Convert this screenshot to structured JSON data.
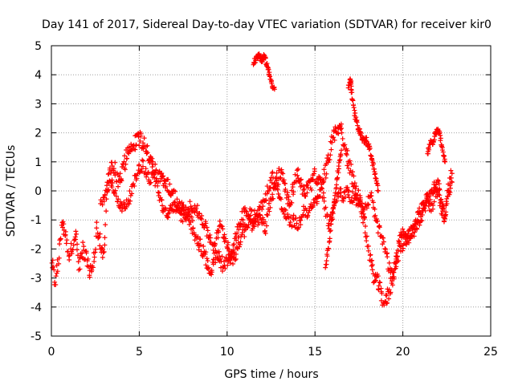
{
  "chart_data": {
    "type": "scatter",
    "title": "Day 141 of 2017, Sidereal Day-to-day VTEC variation (SDTVAR) for receiver kir0",
    "xlabel": "GPS time / hours",
    "ylabel": "SDTVAR / TECUs",
    "xlim": [
      0,
      25
    ],
    "ylim": [
      -5,
      5
    ],
    "xticks": [
      0,
      5,
      10,
      15,
      20,
      25
    ],
    "yticks": [
      -5,
      -4,
      -3,
      -2,
      -1,
      0,
      1,
      2,
      3,
      4,
      5
    ],
    "grid": true,
    "marker": "+",
    "series": [
      {
        "name": "kir0",
        "color": "#ff0000",
        "track_a": {
          "x": [
            0.0,
            0.2,
            0.4,
            0.6,
            0.8,
            1.0,
            1.2,
            1.4,
            1.6,
            1.8,
            2.0,
            2.2,
            2.4,
            2.6,
            2.8,
            3.0,
            3.2,
            3.4,
            3.6,
            3.8,
            4.0,
            4.2,
            4.4,
            4.6,
            4.8,
            5.0,
            5.2,
            5.4,
            5.6,
            5.8,
            6.0,
            6.2,
            6.4,
            6.6,
            6.8,
            7.0,
            7.2,
            7.4,
            7.6,
            7.8,
            8.0,
            8.2,
            8.4,
            8.6,
            8.8,
            9.0,
            9.2,
            9.4,
            9.6,
            9.8,
            10.0,
            10.2,
            10.4,
            10.6,
            10.8,
            11.0,
            11.2,
            11.4,
            11.6,
            11.8,
            12.0,
            12.2,
            12.4,
            12.6,
            12.8,
            13.0,
            13.2,
            13.4,
            13.6,
            13.8,
            14.0,
            14.2,
            14.4,
            14.6,
            14.8,
            15.0,
            15.2,
            15.4,
            15.6,
            15.8,
            16.0,
            16.2,
            16.4,
            16.6,
            16.8,
            17.0,
            17.2,
            17.4,
            17.6,
            17.8,
            18.0,
            18.2,
            18.4,
            18.6,
            18.8,
            19.0,
            19.2,
            19.4,
            19.6,
            19.8,
            20.0,
            20.2,
            20.4,
            20.6,
            20.8,
            21.0,
            21.2,
            21.4,
            21.6,
            21.8,
            22.0,
            22.2,
            22.4,
            22.6,
            22.8
          ],
          "y": [
            -2.3,
            -3.1,
            -2.4,
            -1.0,
            -1.5,
            -2.2,
            -2.0,
            -1.6,
            -2.6,
            -2.0,
            -2.2,
            -2.9,
            -2.4,
            -1.3,
            -1.8,
            -2.3,
            0.5,
            0.7,
            0.9,
            0.2,
            0.6,
            1.0,
            1.5,
            1.6,
            1.7,
            1.8,
            1.7,
            1.5,
            1.0,
            0.8,
            0.6,
            0.5,
            0.3,
            0.2,
            0.0,
            -0.2,
            -0.5,
            -0.6,
            -0.8,
            -1.0,
            -1.2,
            -1.5,
            -1.8,
            -2.0,
            -2.4,
            -2.7,
            -2.5,
            -2.2,
            -2.4,
            -2.6,
            -2.5,
            -2.3,
            -2.2,
            -2.0,
            -1.5,
            -1.3,
            -1.0,
            -0.8,
            -0.9,
            -1.0,
            -1.1,
            -1.2,
            -0.6,
            -0.2,
            0.3,
            0.6,
            0.4,
            -0.2,
            -0.3,
            0.2,
            0.6,
            0.3,
            -0.1,
            0.0,
            0.3,
            0.5,
            0.4,
            0.2,
            0.7,
            1.2,
            1.8,
            2.1,
            2.3,
            1.8,
            1.2,
            0.8,
            0.3,
            0.0,
            -0.5,
            -1.0,
            -1.8,
            -2.6,
            -3.0,
            -3.2,
            -3.6,
            -3.9,
            -3.5,
            -3.0,
            -2.5,
            -2.0,
            -1.8,
            -1.6,
            -1.5,
            -1.3,
            -1.0,
            -0.8,
            -0.5,
            -0.3,
            -0.5,
            -0.2,
            0.0,
            -0.6,
            -0.9,
            0.2,
            0.6
          ]
        },
        "track_b": {
          "x": [
            2.8,
            3.0,
            3.2,
            3.4,
            3.6,
            3.8,
            4.0,
            4.2,
            4.4,
            4.6,
            4.8,
            5.0,
            5.2,
            5.4,
            5.6,
            5.8,
            6.0,
            6.2,
            6.4,
            6.6,
            6.8,
            7.0,
            7.2,
            7.4,
            7.6,
            7.8,
            8.0,
            8.2,
            8.4,
            8.6,
            8.8,
            9.0,
            9.2,
            9.4,
            9.6,
            9.8,
            10.0,
            10.2,
            10.4,
            10.6,
            10.8,
            11.0,
            11.2,
            11.4,
            11.6,
            11.8,
            12.0,
            12.2,
            12.4,
            12.6,
            12.8,
            13.0,
            13.2,
            13.4,
            13.6,
            13.8,
            14.0,
            14.2,
            14.4,
            14.6,
            14.8,
            15.0,
            15.2,
            15.4,
            15.6,
            15.8,
            16.0,
            16.2,
            16.4,
            16.6,
            16.8,
            17.0,
            17.2,
            17.4,
            17.6,
            17.8,
            18.0,
            18.2,
            18.4,
            18.6,
            18.8,
            19.0,
            19.2,
            19.4,
            19.6,
            19.8,
            20.0,
            20.2,
            20.4,
            20.6,
            20.8,
            21.0,
            21.2,
            21.4,
            21.6,
            21.8,
            22.0,
            22.2,
            22.4,
            22.6,
            22.8
          ],
          "y": [
            -0.5,
            -0.2,
            0.0,
            0.3,
            0.0,
            -0.3,
            -0.6,
            -0.5,
            -0.3,
            0.0,
            0.5,
            0.8,
            0.9,
            0.6,
            0.4,
            0.5,
            0.2,
            -0.3,
            -0.7,
            -0.9,
            -0.6,
            -0.5,
            -0.7,
            -0.9,
            -0.8,
            -0.6,
            -0.5,
            -0.6,
            -0.8,
            -1.0,
            -1.3,
            -1.6,
            -1.9,
            -1.6,
            -1.2,
            -1.5,
            -1.8,
            -2.2,
            -1.8,
            -1.4,
            -1.0,
            -0.6,
            -0.8,
            -1.2,
            -1.0,
            -0.7,
            -0.5,
            -0.2,
            0.2,
            0.5,
            0.3,
            -0.3,
            -0.7,
            -0.9,
            -1.1,
            -1.0,
            -1.2,
            -1.0,
            -0.6,
            -0.8,
            -0.6,
            -0.4,
            -0.2,
            0.0,
            -0.6,
            -1.2,
            -0.8,
            -0.2,
            0.0,
            -0.3,
            0.1,
            -0.2,
            -0.2,
            -0.3,
            -0.5,
            -0.8,
            -0.4,
            -0.2,
            -0.8,
            -1.3,
            -1.6,
            -2.0,
            -2.6,
            -3.0,
            -2.5,
            -1.6,
            -1.3,
            -1.6,
            -1.5,
            -1.4,
            -1.3,
            -1.0,
            -0.7,
            -0.3,
            -0.1,
            0.2,
            0.3,
            -0.4,
            -0.8,
            -0.1,
            0.3
          ]
        },
        "arcs": [
          {
            "x": [
              11.5,
              11.6,
              11.7,
              11.8,
              11.9,
              12.0,
              12.1,
              12.2,
              12.3,
              12.4,
              12.5,
              12.6,
              12.7
            ],
            "y": [
              4.4,
              4.5,
              4.6,
              4.7,
              4.6,
              4.5,
              4.6,
              4.5,
              4.3,
              4.0,
              3.8,
              3.6,
              3.5
            ]
          },
          {
            "x": [
              16.9,
              17.0,
              17.05,
              17.1,
              17.2,
              17.3,
              17.4,
              17.5,
              17.6,
              17.7,
              17.8,
              17.9,
              18.0,
              18.1,
              18.2,
              18.3,
              18.4,
              18.5,
              18.6
            ],
            "y": [
              3.6,
              3.8,
              3.7,
              3.3,
              2.9,
              2.5,
              2.3,
              2.1,
              2.0,
              1.8,
              1.7,
              1.8,
              1.6,
              1.5,
              1.2,
              0.9,
              0.6,
              0.3,
              0.0
            ]
          },
          {
            "x": [
              21.4,
              21.5,
              21.6,
              21.7,
              21.8,
              21.9,
              22.0,
              22.1,
              22.2,
              22.3,
              22.4
            ],
            "y": [
              1.2,
              1.5,
              1.8,
              1.6,
              1.9,
              2.0,
              2.2,
              1.9,
              1.6,
              1.3,
              1.0
            ]
          },
          {
            "x": [
              15.6,
              15.7,
              15.8,
              15.9,
              16.0,
              16.1,
              16.2,
              16.3,
              16.4,
              16.5
            ],
            "y": [
              -2.6,
              -2.2,
              -1.8,
              -1.2,
              -0.8,
              -0.4,
              0.2,
              0.6,
              1.0,
              1.4
            ]
          }
        ]
      }
    ]
  }
}
